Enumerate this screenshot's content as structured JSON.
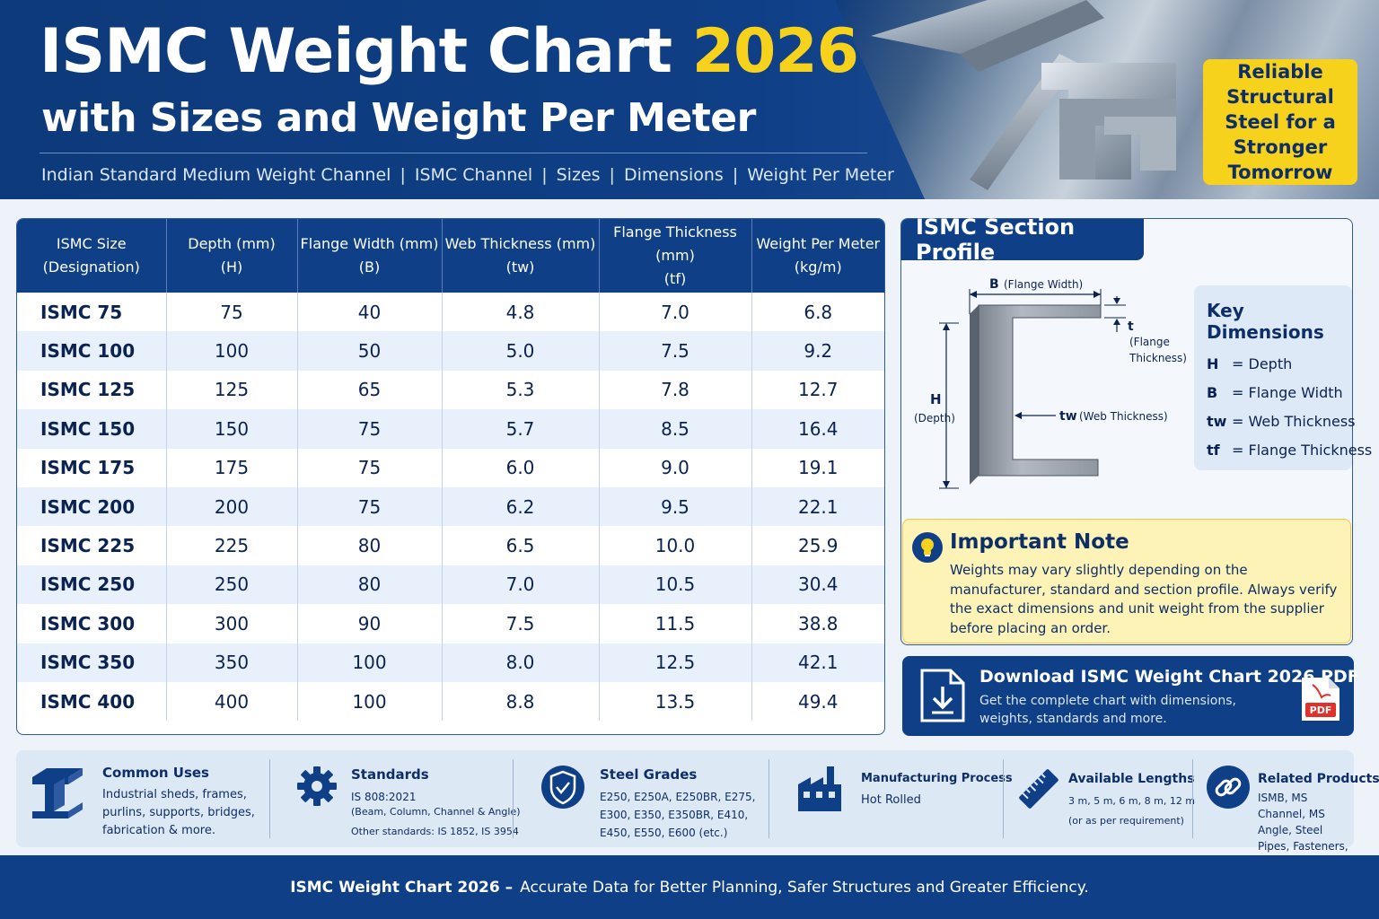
{
  "header": {
    "title_main": "ISMC Weight Chart",
    "title_year": "2026",
    "title_line2": "with Sizes and Weight Per Meter",
    "subtitle_items": [
      "Indian Standard Medium Weight Channel",
      "ISMC Channel",
      "Sizes",
      "Dimensions",
      "Weight Per Meter"
    ],
    "subtitle_separator": "|",
    "badge_text": "Reliable Structural Steel for a Stronger Tomorrow"
  },
  "table": {
    "headers": [
      [
        "ISMC Size",
        "(Designation)"
      ],
      [
        "Depth (mm)",
        "(H)"
      ],
      [
        "Flange Width (mm)",
        "(B)"
      ],
      [
        "Web Thickness (mm)",
        "(tw)"
      ],
      [
        "Flange Thickness (mm)",
        "(tf)"
      ],
      [
        "Weight Per Meter",
        "(kg/m)"
      ]
    ],
    "rows": [
      [
        "ISMC 75",
        "75",
        "40",
        "4.8",
        "7.0",
        "6.8"
      ],
      [
        "ISMC 100",
        "100",
        "50",
        "5.0",
        "7.5",
        "9.2"
      ],
      [
        "ISMC 125",
        "125",
        "65",
        "5.3",
        "7.8",
        "12.7"
      ],
      [
        "ISMC 150",
        "150",
        "75",
        "5.7",
        "8.5",
        "16.4"
      ],
      [
        "ISMC 175",
        "175",
        "75",
        "6.0",
        "9.0",
        "19.1"
      ],
      [
        "ISMC 200",
        "200",
        "75",
        "6.2",
        "9.5",
        "22.1"
      ],
      [
        "ISMC 225",
        "225",
        "80",
        "6.5",
        "10.0",
        "25.9"
      ],
      [
        "ISMC 250",
        "250",
        "80",
        "7.0",
        "10.5",
        "30.4"
      ],
      [
        "ISMC 300",
        "300",
        "90",
        "7.5",
        "11.5",
        "38.8"
      ],
      [
        "ISMC 350",
        "350",
        "100",
        "8.0",
        "12.5",
        "42.1"
      ],
      [
        "ISMC 400",
        "400",
        "100",
        "8.8",
        "13.5",
        "49.4"
      ]
    ]
  },
  "profile": {
    "title": "ISMC Section Profile",
    "label_b_symbol": "B",
    "label_b_text": "(Flange Width)",
    "label_t_symbol": "t",
    "label_t_text1": "(Flange",
    "label_t_text2": "Thickness)",
    "label_h_symbol": "H",
    "label_h_text": "(Depth)",
    "label_tw_symbol": "tw",
    "label_tw_text": "(Web Thickness)",
    "key_title": "Key Dimensions",
    "key_items": [
      {
        "symbol": "H",
        "text": "= Depth"
      },
      {
        "symbol": "B",
        "text": "= Flange Width"
      },
      {
        "symbol": "tw",
        "text": "= Web Thickness"
      },
      {
        "symbol": "tf",
        "text": "= Flange Thickness"
      }
    ]
  },
  "note": {
    "title": "Important Note",
    "body": "Weights may vary slightly depending on the manufacturer, standard and section profile. Always verify the exact dimensions and unit weight from the supplier before placing an order."
  },
  "download": {
    "title": "Download ISMC Weight Chart 2026 PDF",
    "desc": "Get the complete chart with dimensions, weights, standards and more.",
    "pdf_label": "PDF"
  },
  "info": {
    "common_uses": {
      "title": "Common Uses",
      "body": "Industrial sheds, frames, purlins, supports, bridges, fabrication & more."
    },
    "standards": {
      "title": "Standards",
      "line1": "IS 808:2021",
      "line2": "(Beam, Column, Channel & Angle)",
      "line3": "Other standards: IS 1852, IS 3954"
    },
    "grades": {
      "title": "Steel Grades",
      "body": "E250, E250A, E250BR, E275, E300, E350, E350BR, E410, E450, E550, E600 (etc.)"
    },
    "process": {
      "title": "Manufacturing Process",
      "body": "Hot Rolled"
    },
    "lengths": {
      "title": "Available Lengths",
      "line1": "3 m, 5 m, 6 m, 8 m, 12 m",
      "line2": "(or as per requirement)"
    },
    "related": {
      "title": "Related Products",
      "body": "ISMB, MS Channel, MS Angle, Steel Pipes, Fasteners, Flanges"
    }
  },
  "footer": {
    "text_bold": "ISMC Weight Chart 2026 –",
    "text_rest": "Accurate Data for Better Planning, Safer Structures and Greater Efficiency."
  },
  "colors": {
    "primary_navy": "#0f3f86",
    "accent_yellow": "#f7d21c",
    "note_bg": "#fdf3b7",
    "pdf_red": "#e0322b"
  }
}
